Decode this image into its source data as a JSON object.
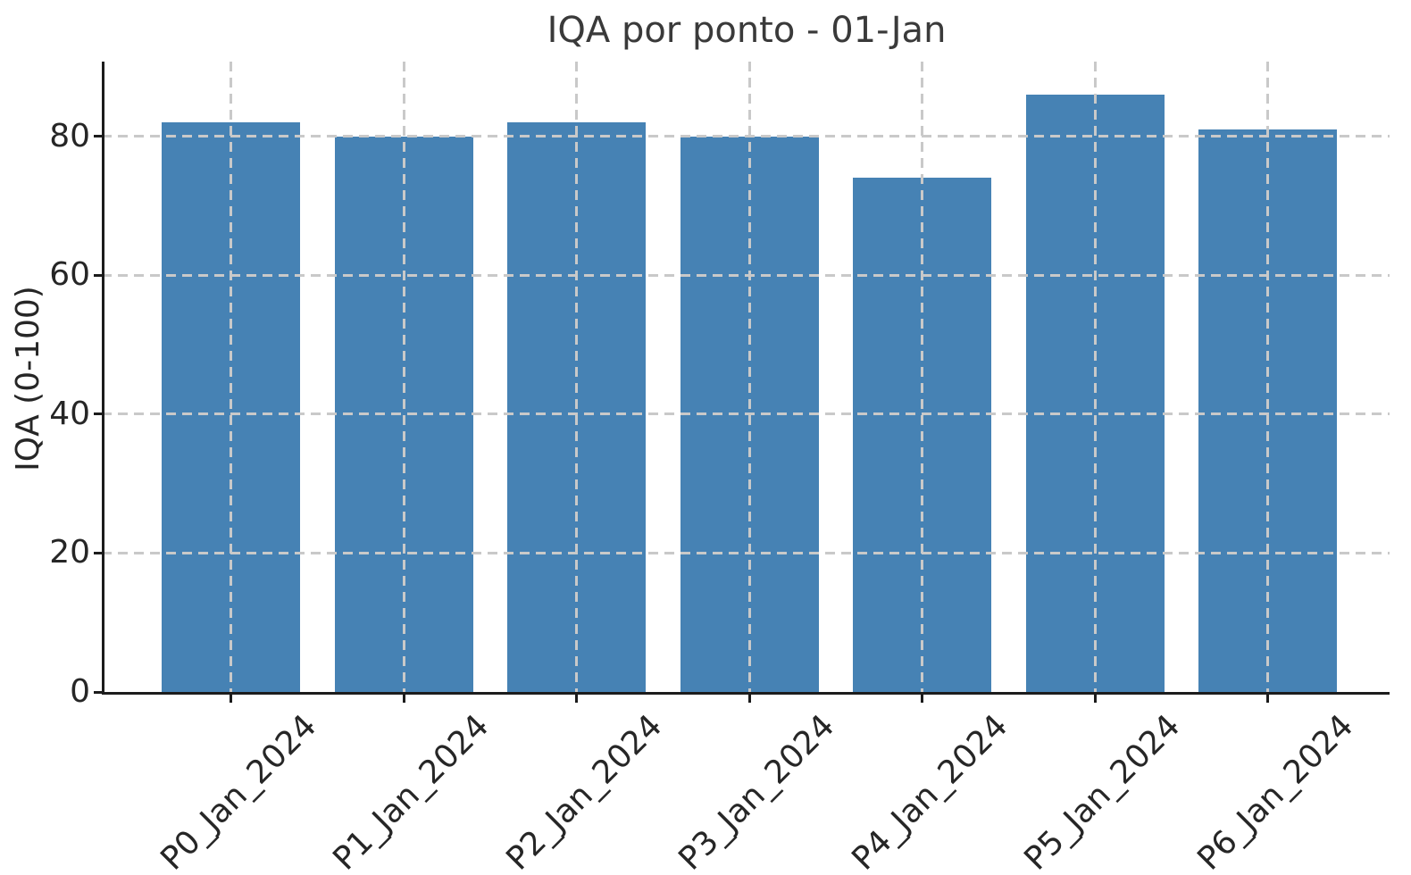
{
  "chart_data": {
    "type": "bar",
    "title": "IQA por ponto - 01-Jan",
    "xlabel": "",
    "ylabel": "IQA (0-100)",
    "categories": [
      "P0_Jan_2024",
      "P1_Jan_2024",
      "P2_Jan_2024",
      "P3_Jan_2024",
      "P4_Jan_2024",
      "P5_Jan_2024",
      "P6_Jan_2024"
    ],
    "values": [
      82,
      80,
      82,
      80,
      74,
      86,
      81
    ],
    "yticks": [
      0,
      20,
      40,
      60,
      80
    ],
    "ylim": [
      0,
      90.7
    ],
    "grid": true,
    "legend_position": "none",
    "bar_color": "#4682B4",
    "grid_color": "#c9c9c9",
    "axis_color": "#1c1c1c",
    "tick_text_color": "#262626",
    "title_color": "#3a3a3a",
    "background_color": "#ffffff"
  }
}
